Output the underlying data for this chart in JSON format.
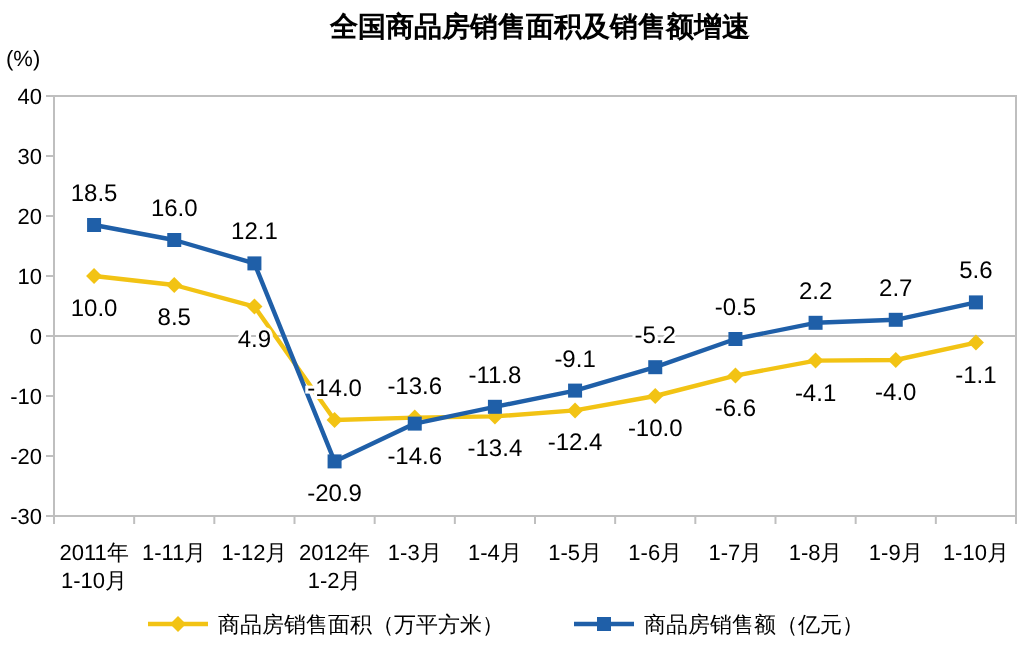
{
  "chart_data": {
    "type": "line",
    "title": "全国商品房销售面积及销售额增速",
    "ylabel": "(%)",
    "categories": [
      "2011年\n1-10月",
      "1-11月",
      "1-12月",
      "2012年\n1-2月",
      "1-3月",
      "1-4月",
      "1-5月",
      "1-6月",
      "1-7月",
      "1-8月",
      "1-9月",
      "1-10月"
    ],
    "series": [
      {
        "name": "商品房销售面积（万平方米）",
        "color": "#f2c314",
        "marker": "diamond",
        "values": [
          10.0,
          8.5,
          4.9,
          -14.0,
          -13.6,
          -13.4,
          -12.4,
          -10.0,
          -6.6,
          -4.1,
          -4.0,
          -1.1
        ],
        "value_labels": [
          "10.0",
          "8.5",
          "4.9",
          "-14.0",
          "-13.6",
          "-13.4",
          "-12.4",
          "-10.0",
          "-6.6",
          "-4.1",
          "-4.0",
          "-1.1"
        ]
      },
      {
        "name": "商品房销售额（亿元）",
        "color": "#1f5fa8",
        "marker": "square",
        "values": [
          18.5,
          16.0,
          12.1,
          -20.9,
          -14.6,
          -11.8,
          -9.1,
          -5.2,
          -0.5,
          2.2,
          2.7,
          5.6
        ],
        "value_labels": [
          "18.5",
          "16.0",
          "12.1",
          "-20.9",
          "-14.6",
          "-11.8",
          "-9.1",
          "-5.2",
          "-0.5",
          "2.2",
          "2.7",
          "5.6"
        ]
      }
    ],
    "ylim": [
      -30,
      40
    ],
    "yticks": [
      -30,
      -20,
      -10,
      0,
      10,
      20,
      30,
      40
    ],
    "legend": "bottom"
  }
}
